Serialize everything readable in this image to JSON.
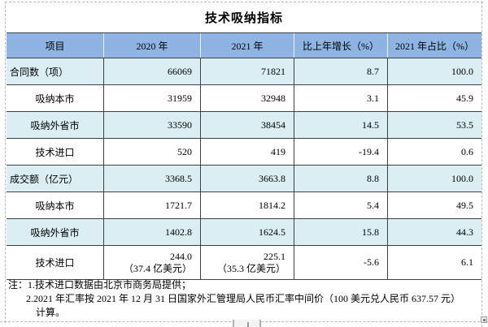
{
  "title": "技术吸纳指标",
  "table": {
    "headers": [
      "项目",
      "2020 年",
      "2021 年",
      "比上年增长（%）",
      "2021 年占比（%）"
    ],
    "rows": [
      {
        "label": "合同数（项）",
        "v2020": "66069",
        "v2021": "71821",
        "growth": "8.7",
        "share": "100.0"
      },
      {
        "label": "吸纳本市",
        "v2020": "31959",
        "v2021": "32948",
        "growth": "3.1",
        "share": "45.9"
      },
      {
        "label": "吸纳外省市",
        "v2020": "33590",
        "v2021": "38454",
        "growth": "14.5",
        "share": "53.5"
      },
      {
        "label": "技术进口",
        "v2020": "520",
        "v2021": "419",
        "growth": "-19.4",
        "share": "0.6"
      },
      {
        "label": "成交额（亿元）",
        "v2020": "3368.5",
        "v2021": "3663.8",
        "growth": "8.8",
        "share": "100.0"
      },
      {
        "label": "吸纳本市",
        "v2020": "1721.7",
        "v2021": "1814.2",
        "growth": "5.4",
        "share": "49.5"
      },
      {
        "label": "吸纳外省市",
        "v2020": "1402.8",
        "v2021": "1624.5",
        "growth": "15.8",
        "share": "44.3"
      },
      {
        "label": "技术进口",
        "v2020": "244.0",
        "v2020_sub": "（37.4 亿美元）",
        "v2021": "225.1",
        "v2021_sub": "（35.3 亿美元）",
        "growth": "-5.6",
        "share": "6.1"
      }
    ]
  },
  "notes": {
    "line1": "注：1.技术进口数据由北京市商务局提供；",
    "line2": "2.2021 年汇率按 2021 年 12 月 31 日国家外汇管理局人民币汇率中间价（100 美元兑人民币 637.57 元）",
    "line3": "计算。"
  },
  "colors": {
    "header_bg": "#8db4e2",
    "row_alt_bg": "#daeef3",
    "table_border": "#404040",
    "boundary_dash": "#b8b8b8"
  }
}
